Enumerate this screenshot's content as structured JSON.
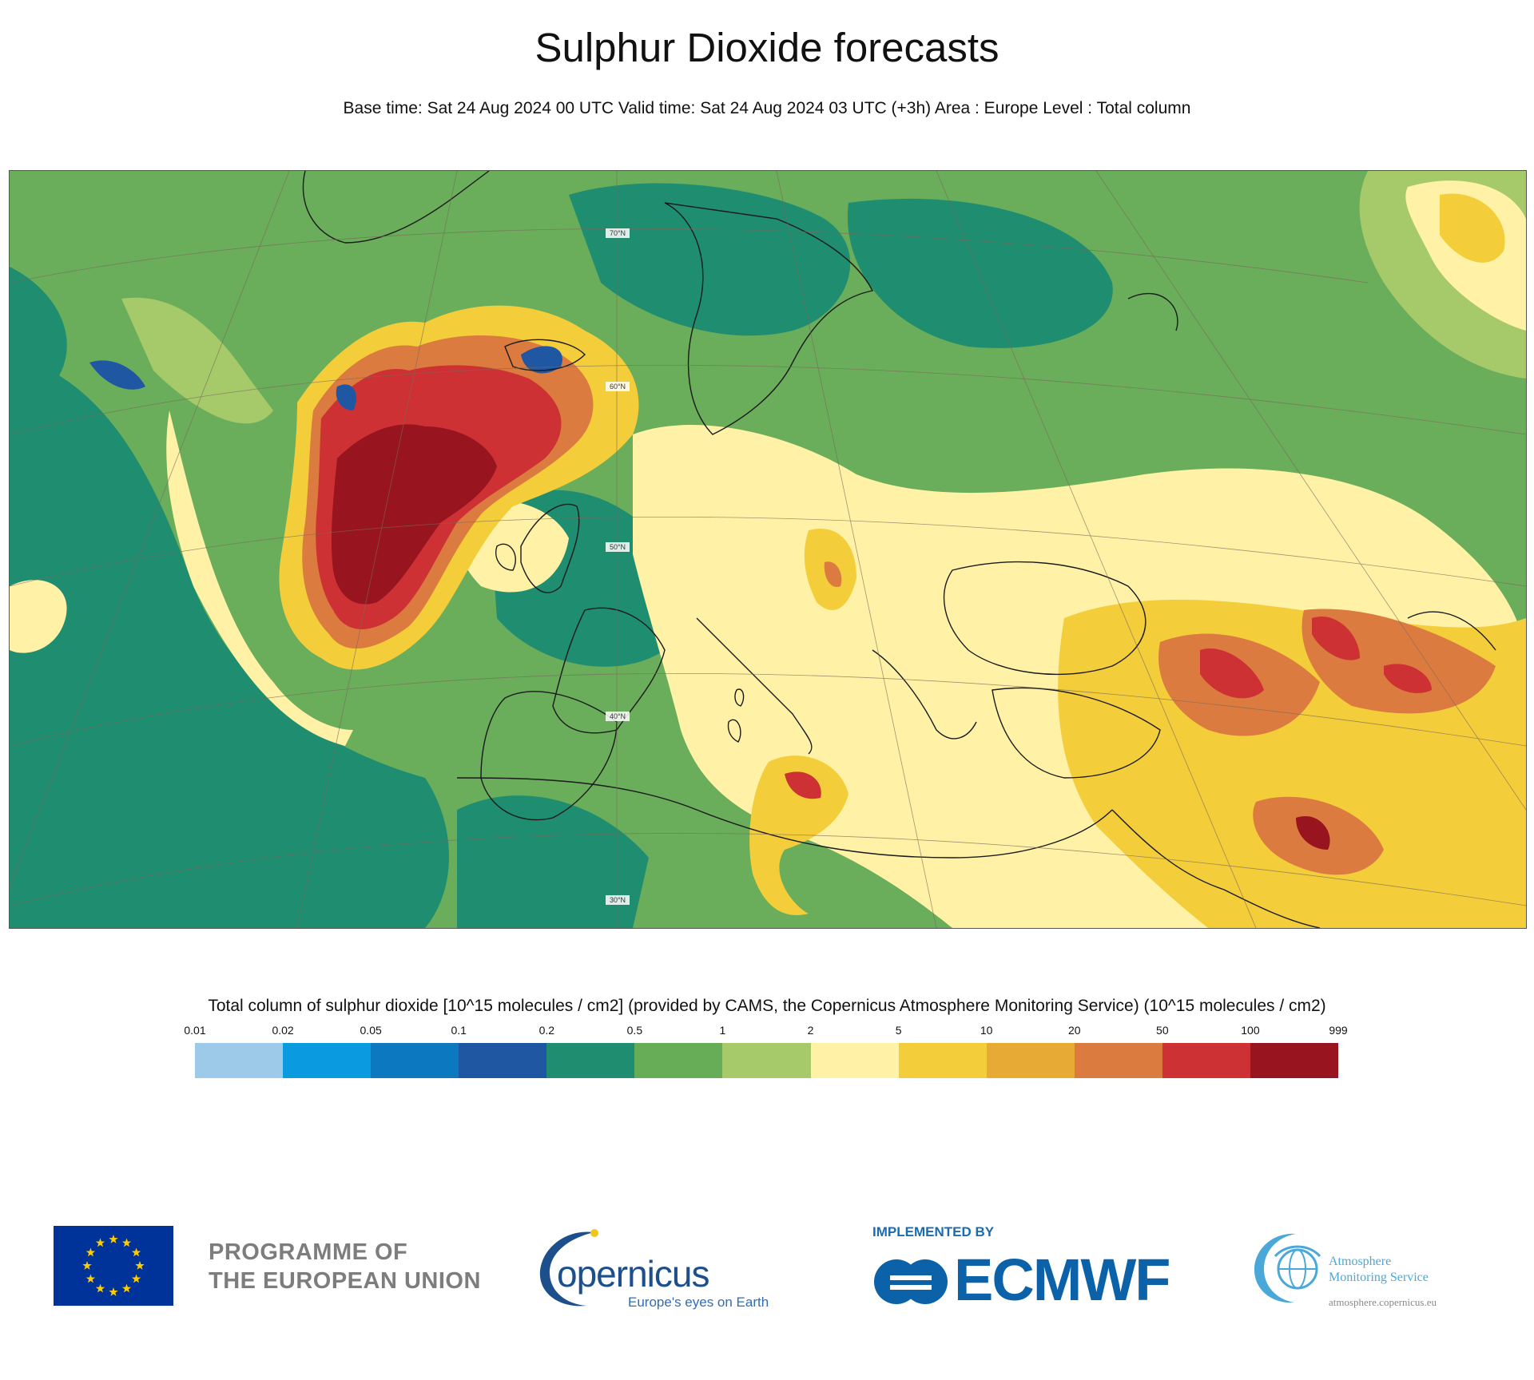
{
  "header": {
    "title": "Sulphur Dioxide forecasts",
    "subtitle": "Base time: Sat 24 Aug 2024 00 UTC Valid time: Sat 24 Aug 2024 03 UTC (+3h) Area : Europe Level : Total column"
  },
  "map": {
    "latitude_labels": [
      "70°N",
      "60°N",
      "50°N",
      "40°N",
      "30°N"
    ]
  },
  "colorbar": {
    "title": "Total column of sulphur dioxide [10^15 molecules / cm2] (provided by CAMS, the Copernicus Atmosphere Monitoring Service) (10^15 molecules / cm2)",
    "ticks": [
      "0.01",
      "0.02",
      "0.05",
      "0.1",
      "0.2",
      "0.5",
      "1",
      "2",
      "5",
      "10",
      "20",
      "50",
      "100",
      "999"
    ],
    "colors": [
      "#9ecae9",
      "#0a9ae0",
      "#0b78bf",
      "#1f57a3",
      "#1f8d70",
      "#67ad57",
      "#a6c96a",
      "#fff2a6",
      "#f3cd3a",
      "#e7aa35",
      "#dc7b3f",
      "#cd3134",
      "#98141f"
    ]
  },
  "footer": {
    "eu_line1": "PROGRAMME OF",
    "eu_line2": "THE EUROPEAN UNION",
    "copernicus_name": "opernicus",
    "copernicus_tagline": "Europe's eyes on Earth",
    "implemented_by": "IMPLEMENTED BY",
    "ecmwf": "ECMWF",
    "ams_line1": "Atmosphere",
    "ams_line2": "Monitoring Service",
    "ams_url": "atmosphere.copernicus.eu"
  }
}
